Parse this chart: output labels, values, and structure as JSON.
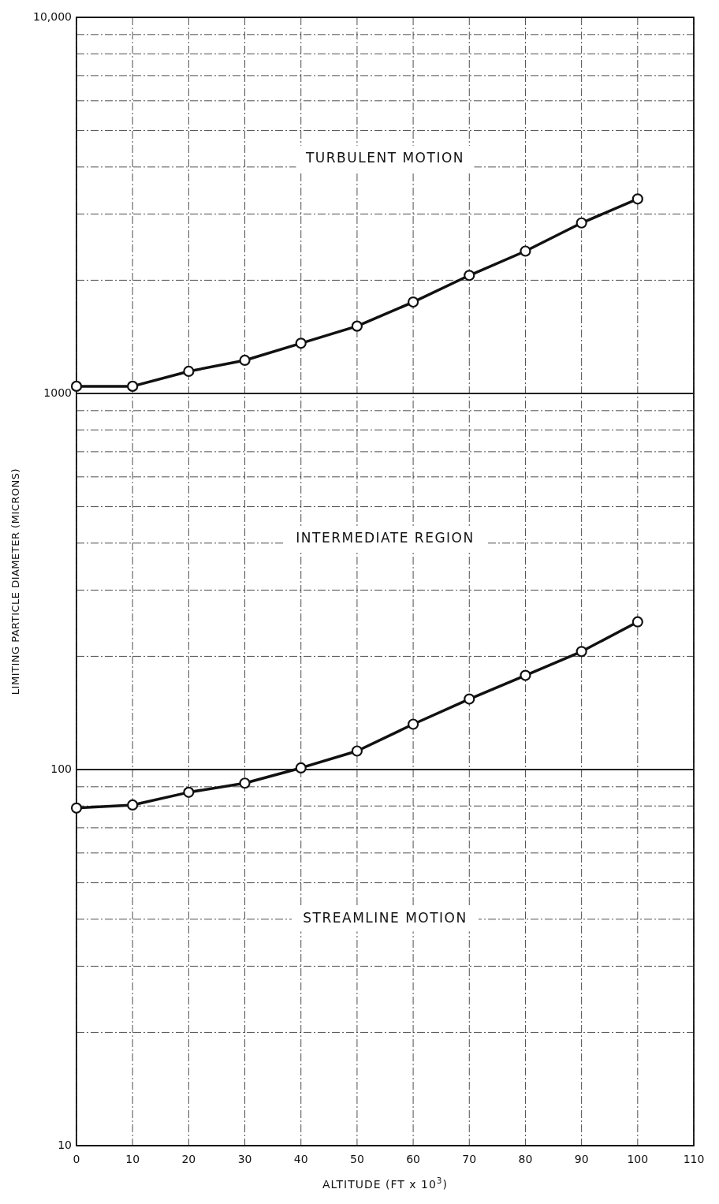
{
  "chart_data": {
    "type": "line",
    "xlabel": "ALTITUDE (FT x 10$^{3}$)",
    "ylabel": "LIMITING PARTICLE DIAMETER (MICRONS)",
    "x": [
      0,
      10,
      20,
      30,
      40,
      50,
      60,
      70,
      80,
      90,
      100
    ],
    "series": [
      {
        "color": "#111111",
        "values": [
          1045,
          1045,
          1145,
          1225,
          1360,
          1510,
          1750,
          2060,
          2390,
          2840,
          3290
        ]
      },
      {
        "color": "#111111",
        "values": [
          79,
          80.5,
          87,
          92,
          101,
          112,
          132,
          154,
          178,
          206,
          247
        ]
      }
    ],
    "log": "y",
    "xlim": [
      0,
      110
    ],
    "ylim": [
      10,
      10000
    ],
    "xticks": [
      0,
      10,
      20,
      30,
      40,
      50,
      60,
      70,
      80,
      90,
      100,
      110
    ],
    "yticks": [
      10,
      {
        "value": 20,
        "label": null
      },
      {
        "value": 30,
        "label": null
      },
      {
        "value": 40,
        "label": null
      },
      {
        "value": 50,
        "label": null
      },
      {
        "value": 60,
        "label": null
      },
      {
        "value": 70,
        "label": null
      },
      {
        "value": 80,
        "label": null
      },
      {
        "value": 90,
        "label": null
      },
      100,
      {
        "value": 200,
        "label": null
      },
      {
        "value": 300,
        "label": null
      },
      {
        "value": 400,
        "label": null
      },
      {
        "value": 500,
        "label": null
      },
      {
        "value": 600,
        "label": null
      },
      {
        "value": 700,
        "label": null
      },
      {
        "value": 800,
        "label": null
      },
      {
        "value": 900,
        "label": null
      },
      1000,
      {
        "value": 2000,
        "label": null
      },
      {
        "value": 3000,
        "label": null
      },
      {
        "value": 4000,
        "label": null
      },
      {
        "value": 5000,
        "label": null
      },
      {
        "value": 6000,
        "label": null
      },
      {
        "value": 7000,
        "label": null
      },
      {
        "value": 8000,
        "label": null
      },
      {
        "value": 9000,
        "label": null
      },
      {
        "value": 10000,
        "label": "10,000"
      }
    ],
    "grid": true,
    "marker": "circle",
    "line_style": "solid",
    "annotations": [
      "TURBULENT MOTION",
      "INTERMEDIATE REGION",
      "STREAMLINE MOTION"
    ]
  }
}
